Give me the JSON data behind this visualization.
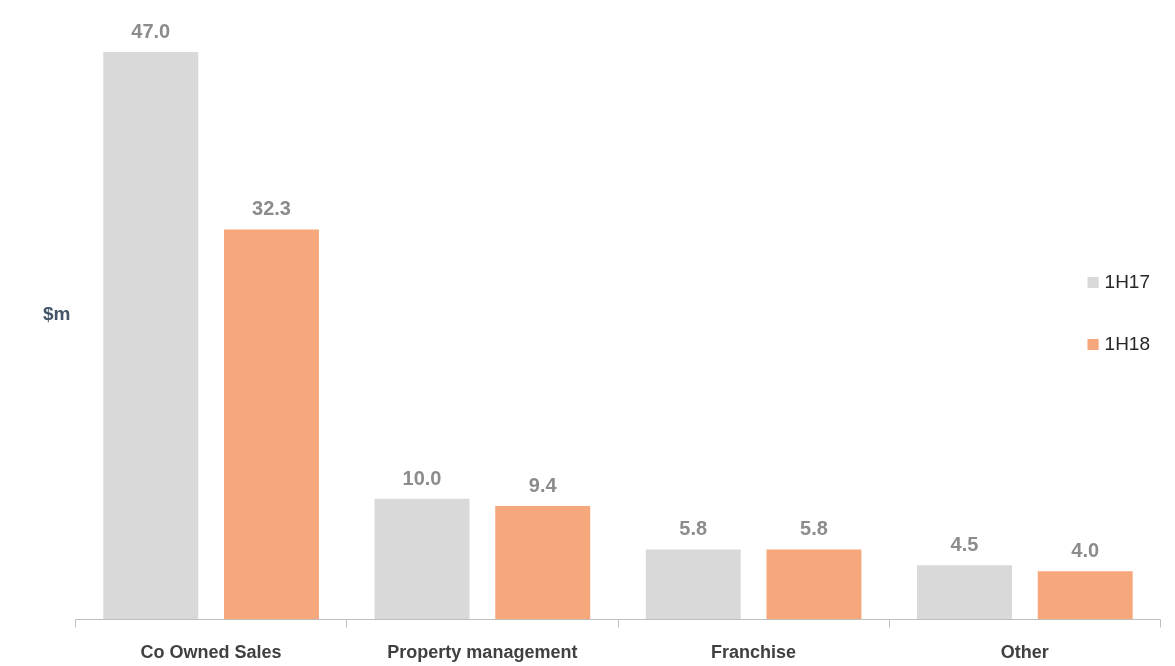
{
  "chart_data": {
    "type": "bar",
    "ylabel": "$m",
    "categories": [
      "Co Owned Sales",
      "Property management",
      "Franchise",
      "Other"
    ],
    "series": [
      {
        "name": "1H17",
        "color": "#d9d9d9",
        "values": [
          47.0,
          10.0,
          5.8,
          4.5
        ],
        "value_labels": [
          "47.0",
          "10.0",
          "5.8",
          "4.5"
        ]
      },
      {
        "name": "1H18",
        "color": "#f6a77b",
        "values": [
          32.3,
          9.4,
          5.8,
          4.0
        ],
        "value_labels": [
          "32.3",
          "9.4",
          "5.8",
          "4.0"
        ]
      }
    ],
    "legend": "right",
    "grid": false
  }
}
